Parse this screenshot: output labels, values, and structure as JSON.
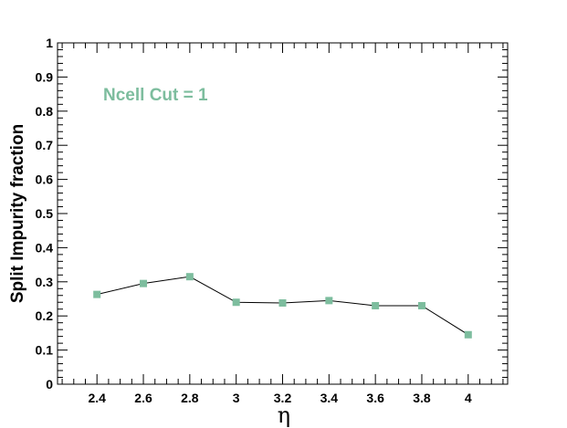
{
  "chart_data": {
    "type": "line",
    "title": "",
    "xlabel": "η",
    "ylabel": "Split Impurity fraction",
    "xlim": [
      2.23,
      4.17
    ],
    "ylim": [
      0,
      1
    ],
    "xticks": [
      "2.4",
      "2.6",
      "2.8",
      "3",
      "3.2",
      "3.4",
      "3.6",
      "3.8",
      "4"
    ],
    "yticks": [
      "0",
      "0.1",
      "0.2",
      "0.3",
      "0.4",
      "0.5",
      "0.6",
      "0.7",
      "0.8",
      "0.9",
      "1"
    ],
    "series": [
      {
        "x": [
          2.4,
          2.6,
          2.8,
          3.0,
          3.2,
          3.4,
          3.6,
          3.8,
          4.0
        ],
        "y": [
          0.263,
          0.295,
          0.315,
          0.24,
          0.238,
          0.245,
          0.23,
          0.23,
          0.145
        ],
        "marker": "square",
        "marker_color": "#7dbd9e",
        "line_color": "#000000"
      }
    ],
    "annotation": {
      "text": "Ncell Cut = 1",
      "color": "#7dbd9e"
    },
    "grid": false,
    "legend": "none"
  }
}
